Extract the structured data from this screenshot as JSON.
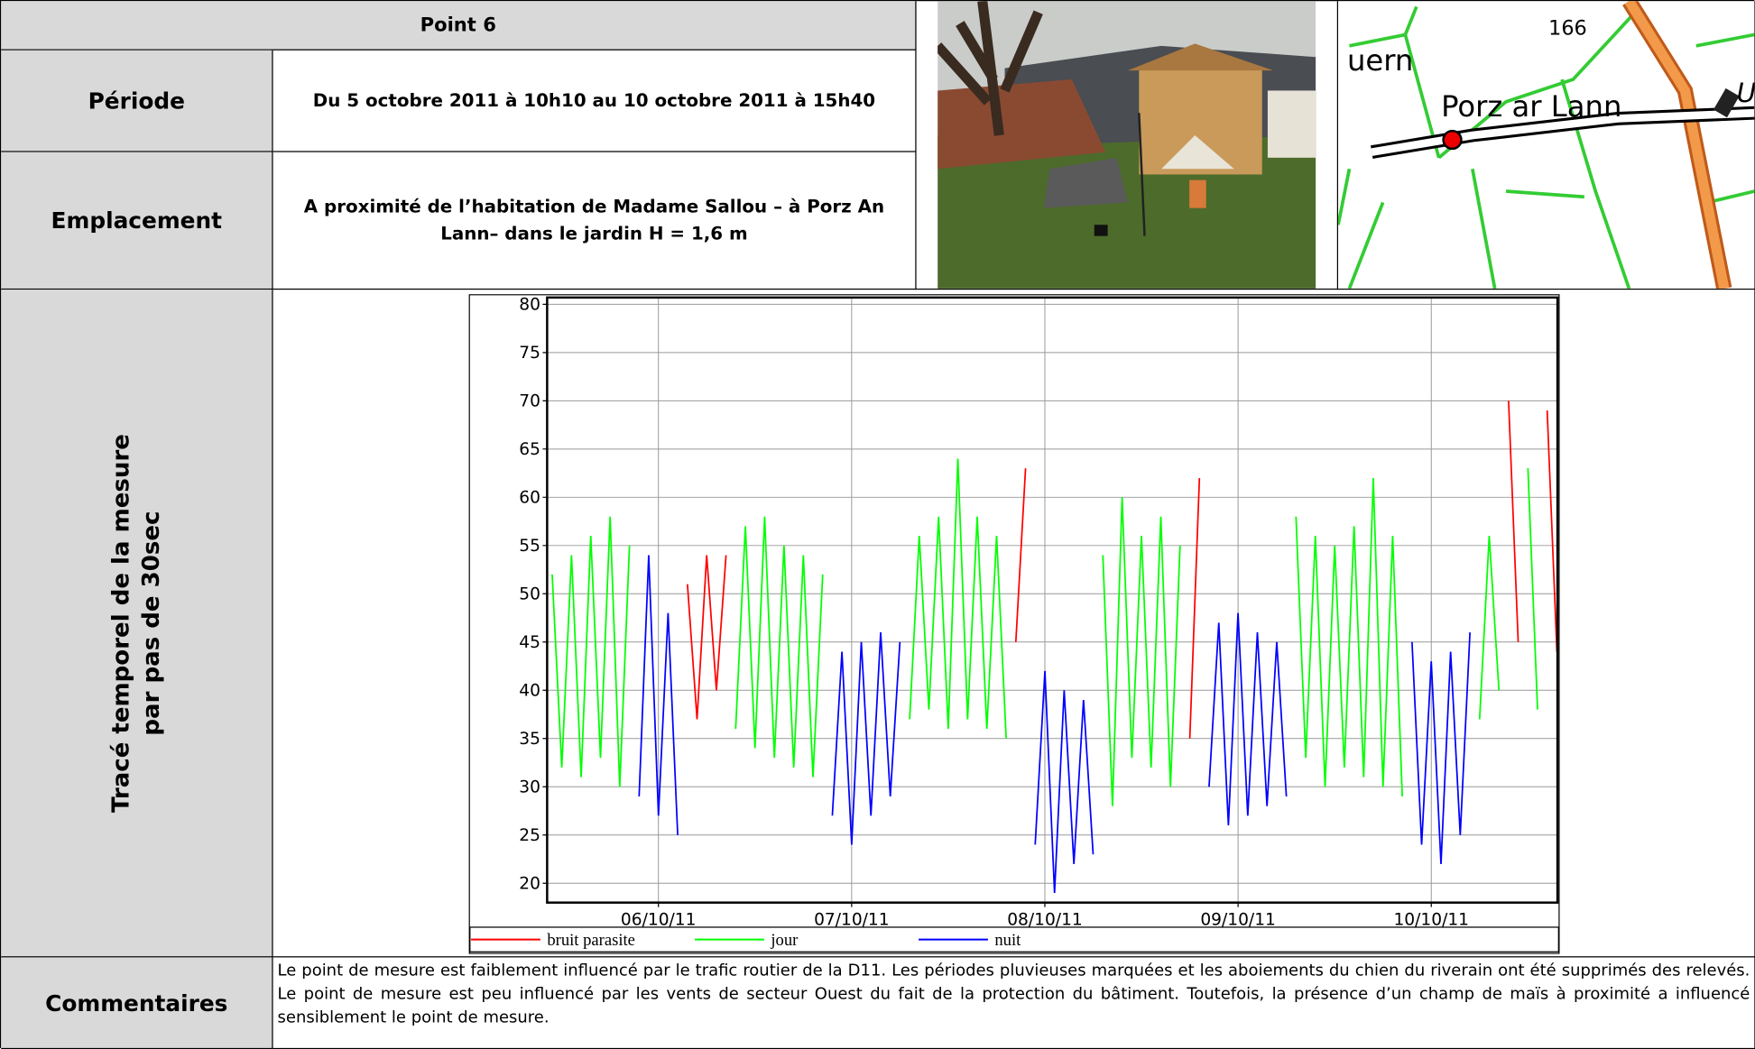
{
  "header": {
    "title": "Point 6"
  },
  "info": [
    {
      "label": "Période",
      "text": "Du 5 octobre 2011 à 10h10 au 10 octobre 2011 à 15h40"
    },
    {
      "label": "Emplacement",
      "text": "A proximité de l’habitation de Madame Sallou – à Porz An Lann– dans le jardin H = 1,6 m"
    }
  ],
  "map": {
    "labels": [
      "uern",
      "166",
      "Porz ar Lann",
      "Us"
    ]
  },
  "chart_section": {
    "label": [
      "Tracé temporel de la mesure",
      "par pas de 30sec"
    ]
  },
  "chart_data": {
    "type": "line",
    "x": [
      5.45,
      5.5,
      5.55,
      5.6,
      5.65,
      5.7,
      5.75,
      5.8,
      5.85,
      5.9,
      5.95,
      6.0,
      6.05,
      6.1,
      6.15,
      6.2,
      6.25,
      6.3,
      6.35,
      6.4,
      6.45,
      6.5,
      6.55,
      6.6,
      6.65,
      6.7,
      6.75,
      6.8,
      6.85,
      6.9,
      6.95,
      7.0,
      7.05,
      7.1,
      7.15,
      7.2,
      7.25,
      7.3,
      7.35,
      7.4,
      7.45,
      7.5,
      7.55,
      7.6,
      7.65,
      7.7,
      7.75,
      7.8,
      7.85,
      7.9,
      7.95,
      8.0,
      8.05,
      8.1,
      8.15,
      8.2,
      8.25,
      8.3,
      8.35,
      8.4,
      8.45,
      8.5,
      8.55,
      8.6,
      8.65,
      8.7,
      8.75,
      8.8,
      8.85,
      8.9,
      8.95,
      9.0,
      9.05,
      9.1,
      9.15,
      9.2,
      9.25,
      9.3,
      9.35,
      9.4,
      9.45,
      9.5,
      9.55,
      9.6,
      9.65,
      9.7,
      9.75,
      9.8,
      9.85,
      9.9,
      9.95,
      10.0,
      10.05,
      10.1,
      10.15,
      10.2,
      10.25,
      10.3,
      10.35,
      10.4,
      10.45,
      10.5,
      10.55,
      10.6,
      10.65
    ],
    "xlim": [
      5.424,
      10.653
    ],
    "xticks": [
      {
        "value": 6,
        "label": "06/10/11"
      },
      {
        "value": 7,
        "label": "07/10/11"
      },
      {
        "value": 8,
        "label": "08/10/11"
      },
      {
        "value": 9,
        "label": "09/10/11"
      },
      {
        "value": 10,
        "label": "10/10/11"
      }
    ],
    "ylim": [
      18,
      80.7
    ],
    "yticks": [
      20,
      25,
      30,
      35,
      40,
      45,
      50,
      55,
      60,
      65,
      70,
      75,
      80
    ],
    "grid": true,
    "legend": "bottom",
    "series": [
      {
        "name": "bruit parasite",
        "color": "#ff0000",
        "values": [
          null,
          null,
          null,
          null,
          null,
          null,
          null,
          null,
          null,
          null,
          null,
          null,
          null,
          null,
          51,
          37,
          54,
          40,
          54,
          null,
          null,
          null,
          null,
          null,
          null,
          null,
          null,
          null,
          null,
          null,
          null,
          null,
          null,
          null,
          null,
          null,
          null,
          null,
          null,
          null,
          null,
          null,
          null,
          null,
          null,
          null,
          null,
          null,
          45,
          63,
          null,
          null,
          null,
          null,
          null,
          null,
          null,
          null,
          null,
          null,
          null,
          null,
          null,
          null,
          null,
          null,
          35,
          62,
          null,
          null,
          null,
          null,
          null,
          null,
          null,
          null,
          null,
          null,
          null,
          null,
          null,
          null,
          null,
          null,
          null,
          null,
          null,
          null,
          null,
          null,
          null,
          null,
          null,
          null,
          null,
          null,
          null,
          null,
          null,
          70,
          45,
          null,
          null,
          69,
          44
        ]
      },
      {
        "name": "jour",
        "color": "#00ff00",
        "values": [
          52,
          32,
          54,
          31,
          56,
          33,
          58,
          30,
          55,
          null,
          null,
          null,
          null,
          null,
          null,
          null,
          null,
          null,
          null,
          36,
          57,
          34,
          58,
          33,
          55,
          32,
          54,
          31,
          52,
          null,
          null,
          null,
          null,
          null,
          null,
          null,
          null,
          37,
          56,
          38,
          58,
          36,
          64,
          37,
          58,
          36,
          56,
          35,
          null,
          null,
          null,
          null,
          null,
          null,
          null,
          null,
          null,
          54,
          28,
          60,
          33,
          56,
          32,
          58,
          30,
          55,
          null,
          null,
          null,
          null,
          null,
          null,
          null,
          null,
          null,
          null,
          null,
          58,
          33,
          56,
          30,
          55,
          32,
          57,
          31,
          62,
          30,
          56,
          29,
          null,
          null,
          null,
          null,
          null,
          null,
          null,
          37,
          56,
          40,
          null,
          null,
          63,
          38,
          null,
          null
        ]
      },
      {
        "name": "nuit",
        "color": "#0000ff",
        "values": [
          null,
          null,
          null,
          null,
          null,
          null,
          null,
          null,
          null,
          29,
          54,
          27,
          48,
          25,
          null,
          null,
          null,
          null,
          null,
          null,
          null,
          null,
          null,
          null,
          null,
          null,
          null,
          null,
          null,
          27,
          44,
          24,
          45,
          27,
          46,
          29,
          45,
          null,
          null,
          null,
          null,
          null,
          null,
          null,
          null,
          null,
          null,
          null,
          null,
          null,
          24,
          42,
          19,
          40,
          22,
          39,
          23,
          null,
          null,
          null,
          null,
          null,
          null,
          null,
          null,
          null,
          null,
          null,
          30,
          47,
          26,
          48,
          27,
          46,
          28,
          45,
          29,
          null,
          null,
          null,
          null,
          null,
          null,
          null,
          null,
          null,
          null,
          null,
          null,
          45,
          24,
          43,
          22,
          44,
          25,
          46,
          null,
          null,
          null,
          null,
          null,
          null,
          null,
          null,
          null
        ]
      }
    ]
  },
  "comments": {
    "label": "Commentaires",
    "text": "Le point de mesure est faiblement influencé par le trafic routier de la D11. Les périodes pluvieuses marquées et les aboiements du chien du riverain ont été supprimés des relevés. Le point de mesure est peu influencé par les vents de secteur Ouest du fait de la protection du bâtiment. Toutefois, la présence d’un champ de maïs à proximité a influencé sensiblement le point de mesure."
  }
}
